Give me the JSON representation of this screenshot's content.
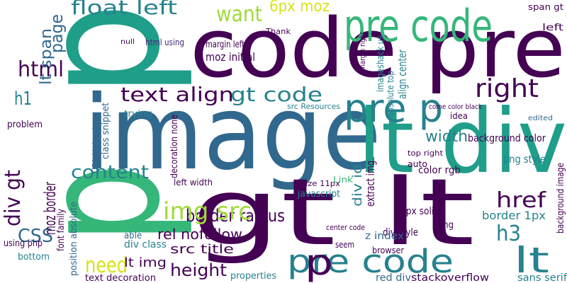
{
  "words": [
    "p",
    "p",
    "code pre",
    "image",
    "lt div",
    "gt lt",
    "pre code",
    "pre p",
    "pre code",
    "lt",
    "p",
    "float left",
    "want",
    "6px moz",
    "text align",
    "gt code",
    "right",
    "html",
    "CSS",
    "content",
    "border radius",
    "img src",
    "need",
    "height",
    "href",
    "h3",
    "width",
    "border 1px",
    "lt span",
    "page",
    "div gt",
    "moz border",
    "h1",
    "rel nofollow",
    "src title",
    "lt img",
    "text decoration",
    "background color",
    "stackoverflow",
    "red div",
    "sans serif",
    "javascript",
    "color rgb",
    "div style",
    "1px solid",
    "extract img",
    "div id",
    "align center",
    "absolute top",
    "z index",
    "long",
    "margin left",
    "moz initial",
    "html using",
    "trying",
    "URL Upload",
    "position absolute",
    "font family",
    "left width",
    "decoration none",
    "div class",
    "able",
    "using php",
    "bottom",
    "problem",
    "Thank",
    "left",
    "span gt",
    "src Resources",
    "size 11px",
    "properties",
    "browser",
    "top right",
    "seem",
    "Link",
    "auto",
    "idea",
    "edited",
    "png style",
    "background image",
    "come color black",
    "null",
    "class snippet",
    "imageshack us",
    "margin right",
    "center code"
  ]
}
